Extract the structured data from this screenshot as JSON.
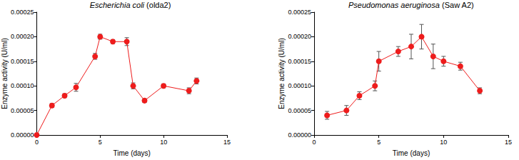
{
  "chart_data": [
    {
      "type": "line",
      "title": "Escherichia coli (olda2)",
      "x_label": "Time (days)",
      "y_label": "Enzyme activity (U/ml)",
      "x": [
        0,
        1.2,
        2.2,
        3.1,
        4.6,
        5,
        6,
        7.1,
        7.6,
        8.5,
        10,
        12,
        12.6
      ],
      "values": [
        0,
        6e-05,
        8e-05,
        9.7e-05,
        0.00016,
        0.0002,
        0.00019,
        0.00019,
        0.0001,
        7e-05,
        0.0001,
        9e-05,
        0.00011
      ],
      "errors": [
        0,
        4e-06,
        4e-06,
        8e-06,
        6e-06,
        5e-06,
        4e-06,
        8e-06,
        6e-06,
        4e-06,
        4e-06,
        6e-06,
        6e-06
      ],
      "color": "#ee1c1c",
      "marker": "circle",
      "grid": false,
      "xlim": [
        0,
        15
      ],
      "xticks": [
        0,
        5,
        10,
        15
      ],
      "ylim": [
        0,
        0.00025
      ],
      "yticks": [
        {
          "value": 0,
          "label": "0.00000"
        },
        {
          "value": 5e-05,
          "label": "0.00005"
        },
        {
          "value": 0.0001,
          "label": "0.00010"
        },
        {
          "value": 0.00015,
          "label": "0.00015"
        },
        {
          "value": 0.0002,
          "label": "0.00020"
        },
        {
          "value": 0.00025,
          "label": "0.00025"
        }
      ]
    },
    {
      "type": "line",
      "title": "Pseudomonas aeruginosa (Saw A2)",
      "x_label": "Time (days)",
      "y_label": "Enzyme activity (U/ml)",
      "x": [
        1,
        2.5,
        3.5,
        4.7,
        5,
        6.5,
        7.5,
        8.3,
        9.2,
        10,
        11.3,
        12.8
      ],
      "values": [
        4e-05,
        5e-05,
        8e-05,
        0.0001,
        0.00015,
        0.00017,
        0.00018,
        0.0002,
        0.00016,
        0.00015,
        0.00014,
        9e-05
      ],
      "errors": [
        8e-06,
        1e-05,
        8e-06,
        1e-05,
        2e-05,
        1e-05,
        2.5e-05,
        2.5e-05,
        2.5e-05,
        1e-05,
        8e-06,
        6e-06
      ],
      "color": "#ee1c1c",
      "marker": "circle",
      "grid": false,
      "xlim": [
        0,
        15
      ],
      "xticks": [
        0,
        5,
        10,
        15
      ],
      "ylim": [
        0,
        0.00025
      ],
      "yticks": [
        {
          "value": 0,
          "label": "0.00000"
        },
        {
          "value": 5e-05,
          "label": "0.00005"
        },
        {
          "value": 0.0001,
          "label": "0.00010"
        },
        {
          "value": 0.00015,
          "label": "0.00015"
        },
        {
          "value": 0.0002,
          "label": "0.00020"
        },
        {
          "value": 0.00025,
          "label": "0.00025"
        }
      ]
    }
  ]
}
